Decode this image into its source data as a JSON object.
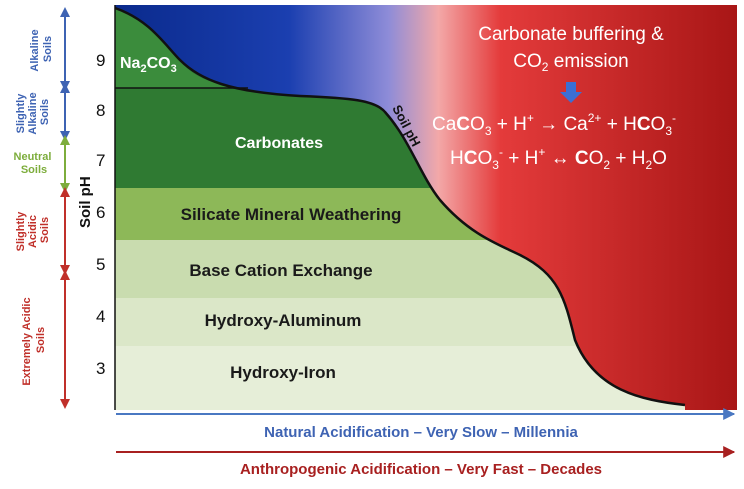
{
  "axis": {
    "ylabel": "Soil pH",
    "ticks": [
      "9",
      "8",
      "7",
      "6",
      "5",
      "4",
      "3"
    ]
  },
  "soil_classes": [
    {
      "line1": "Alkaline",
      "line2": "Soils",
      "color": "#3e63b3"
    },
    {
      "line1": "Slightly",
      "line2": "Alkaline",
      "line3": "Soils",
      "color": "#3e63b3"
    },
    {
      "line1": "Neutral",
      "line2": "Soils",
      "color": "#7dad3c"
    },
    {
      "line1": "Slightly",
      "line2": "Acidic",
      "line3": "Soils",
      "color": "#c0302a"
    },
    {
      "line1": "Extremely Acidic",
      "line2": "Soils",
      "color": "#c0302a"
    }
  ],
  "zones": {
    "na2co3": {
      "main": "Na",
      "sub1": "2",
      "mid": "CO",
      "sub2": "3"
    },
    "carbonates": "Carbonates",
    "silicate": "Silicate Mineral Weathering",
    "base_cation": "Base Cation Exchange",
    "hydroxy_aluminum": "Hydroxy-Aluminum",
    "hydroxy_iron": "Hydroxy-Iron"
  },
  "curve_label": "Soil pH",
  "buffering": {
    "title_line1": "Carbonate buffering &",
    "title_line2_a": "CO",
    "title_line2_sub": "2",
    "title_line2_b": " emission",
    "eq1": {
      "ca": "Ca",
      "c": "C",
      "o3": "O",
      "o3sub": "3",
      "plus1": " + H",
      "hsup": "+",
      "arrow": " → Ca",
      "ca_sup": "2+",
      "plus2": " + H",
      "c2": "C",
      "o3b": "O",
      "o3bsub": "3",
      "minus": "-"
    },
    "eq2": {
      "h": "H",
      "c": "C",
      "o3": "O",
      "o3sub": "3",
      "minus": "-",
      "plus": " + H",
      "hsup": "+",
      "arrow": " ↔ ",
      "c2": "C",
      "o2": "O",
      "o2sub": "2",
      "plus2": " + H",
      "h2sub": "2",
      "o": "O"
    }
  },
  "arrows": {
    "natural": "Natural Acidification – Very Slow – Millennia",
    "anthropogenic": "Anthropogenic Acidification – Very Fast – Decades"
  },
  "colors": {
    "alkaline_blue": "#0a1f8f",
    "acid_red": "#b01818",
    "carbonate_green": "#2f7a32",
    "silicate_green": "#8db858",
    "base_cation": "#c9dcaf",
    "hydroxy_al": "#dbe7c8",
    "hydroxy_fe": "#e6eed8",
    "natural_arrow": "#4a78c2",
    "anthro_arrow": "#a82020"
  }
}
